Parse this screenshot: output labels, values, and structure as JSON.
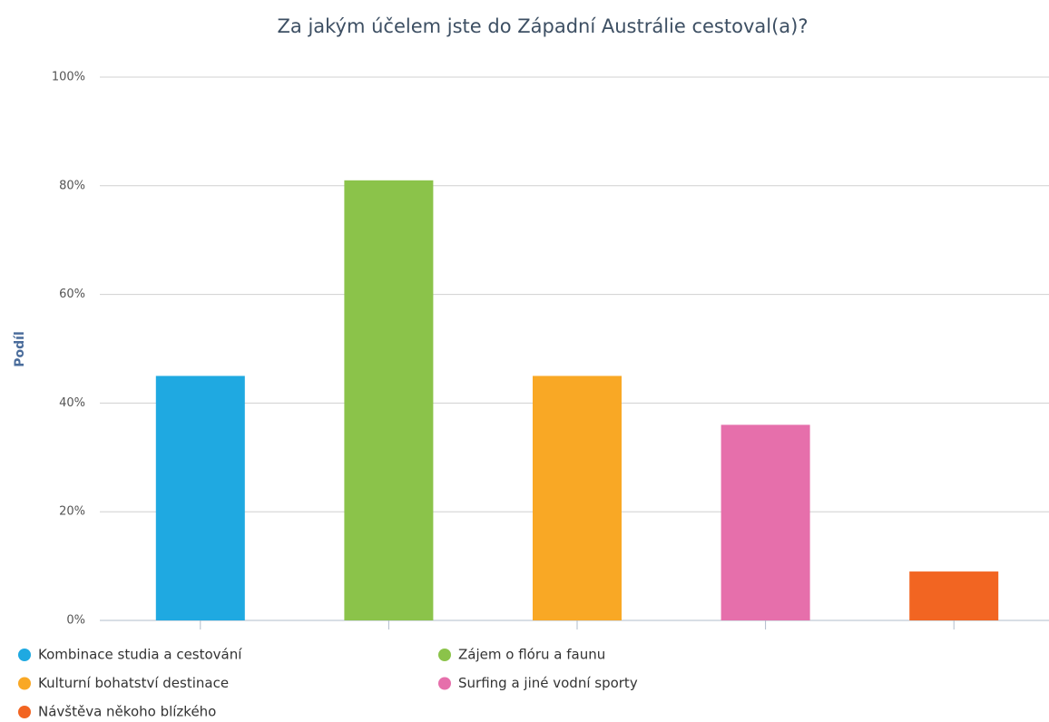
{
  "chart_data": {
    "type": "bar",
    "title": "Za jakým účelem jste do Západní Austrálie cestoval(a)?",
    "y_label": "Podíl",
    "series": [
      {
        "name": "Kombinace studia a cestování",
        "color": "#1fa9e1",
        "values": [
          45
        ]
      },
      {
        "name": "Zájem o flóru a faunu",
        "color": "#8bc34a",
        "values": [
          81
        ]
      },
      {
        "name": "Kulturní bohatství destinace",
        "color": "#f9a825",
        "values": [
          45
        ]
      },
      {
        "name": "Surfing a jiné vodní sporty",
        "color": "#e66fab",
        "values": [
          36
        ]
      },
      {
        "name": "Návštěva někoho blízkého",
        "color": "#f26522",
        "values": [
          9
        ]
      }
    ],
    "ylim": [
      0,
      100
    ],
    "yticks": [
      {
        "value": 0,
        "label": "0%"
      },
      {
        "value": 20,
        "label": "20%"
      },
      {
        "value": 40,
        "label": "40%"
      },
      {
        "value": 60,
        "label": "60%"
      },
      {
        "value": 80,
        "label": "80%"
      },
      {
        "value": 100,
        "label": "100%"
      }
    ],
    "grid": true
  }
}
